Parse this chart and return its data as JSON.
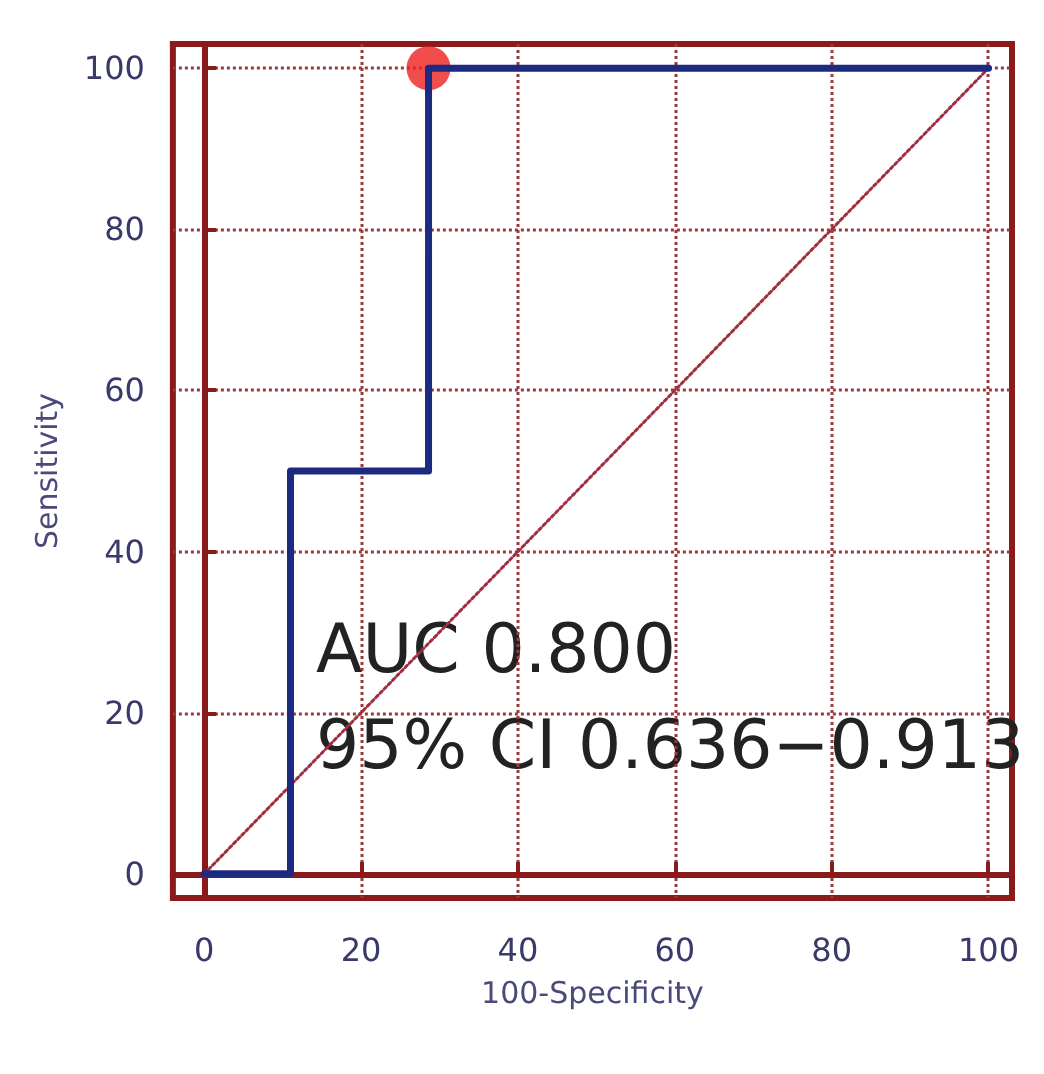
{
  "chart_data": {
    "type": "line",
    "xlabel": "100-Specificity",
    "ylabel": "Sensitivity",
    "xlim": [
      -4,
      103
    ],
    "ylim": [
      -3,
      103
    ],
    "xticks": [
      0,
      20,
      40,
      60,
      80,
      100
    ],
    "yticks": [
      0,
      20,
      40,
      60,
      80,
      100
    ],
    "grid": true,
    "annotations": [
      "AUC 0.800",
      "95% CI 0.636−0.913"
    ],
    "series": [
      {
        "color": "#1c2a80",
        "x": [
          0,
          11,
          11,
          28.6,
          28.6,
          100
        ],
        "values": [
          0,
          0,
          50,
          50,
          100,
          100
        ],
        "marker": "none",
        "line_style": "solid"
      },
      {
        "color": "#a03040",
        "x": [
          0,
          100
        ],
        "values": [
          0,
          100
        ],
        "marker": "none",
        "line_style": "dotted"
      },
      {
        "type": "scatter",
        "color": "#ee2020",
        "x": [
          28.6
        ],
        "values": [
          100
        ],
        "marker": "circle"
      }
    ]
  }
}
